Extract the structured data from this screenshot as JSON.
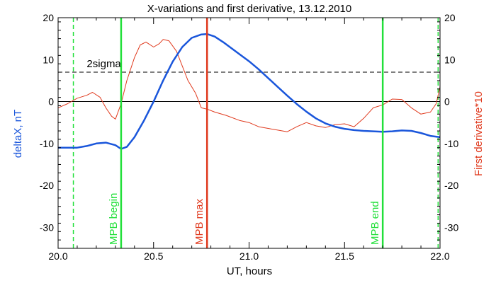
{
  "chart_data": {
    "type": "line",
    "title": "X-variations and first derivative, 13.12.2010",
    "xlabel": "UT, hours",
    "ylabel_left": "deltaX, nT",
    "ylabel_right": "First derivative*10",
    "xlim": [
      20.0,
      22.0
    ],
    "ylim": [
      -35,
      20
    ],
    "xticks": [
      {
        "value": 20.0,
        "label": "20.0"
      },
      {
        "value": 20.5,
        "label": "20.5"
      },
      {
        "value": 21.0,
        "label": "21.0"
      },
      {
        "value": 21.5,
        "label": "21.5"
      },
      {
        "value": 22.0,
        "label": "22.0"
      }
    ],
    "yticks": [
      {
        "value": 20,
        "label": "20"
      },
      {
        "value": 10,
        "label": "10"
      },
      {
        "value": 0,
        "label": "0"
      },
      {
        "value": -10,
        "label": "-10"
      },
      {
        "value": -20,
        "label": "-20"
      },
      {
        "value": -30,
        "label": "-30"
      }
    ],
    "colors": {
      "deltaX": "#1a56db",
      "derivative": "#e03a1e",
      "mpb_boundary": "#22e03a",
      "mpb_max": "#e03a1e",
      "axis": "#000000"
    },
    "series": [
      {
        "key": "deltaX",
        "x": [
          20.0,
          20.05,
          20.1,
          20.15,
          20.2,
          20.25,
          20.3,
          20.33,
          20.36,
          20.4,
          20.45,
          20.5,
          20.55,
          20.6,
          20.65,
          20.7,
          20.75,
          20.78,
          20.82,
          20.87,
          20.95,
          21.0,
          21.05,
          21.1,
          21.15,
          21.2,
          21.25,
          21.3,
          21.35,
          21.4,
          21.45,
          21.5,
          21.55,
          21.6,
          21.65,
          21.7,
          21.75,
          21.8,
          21.85,
          21.9,
          21.95,
          22.0
        ],
        "y": [
          -11,
          -11,
          -11,
          -10.6,
          -10,
          -9.8,
          -10.4,
          -11.3,
          -10.8,
          -8.5,
          -4.5,
          0,
          5,
          9.5,
          13,
          15.2,
          16,
          16.1,
          15.5,
          14,
          11.3,
          9.6,
          7.7,
          5.6,
          3.5,
          1.4,
          -0.6,
          -2.4,
          -4,
          -5.2,
          -6,
          -6.5,
          -6.8,
          -7,
          -7.1,
          -7.2,
          -7.1,
          -6.9,
          -7,
          -7.5,
          -8.2,
          -8.5
        ]
      },
      {
        "key": "derivative",
        "x": [
          20.0,
          20.05,
          20.1,
          20.15,
          20.18,
          20.22,
          20.25,
          20.28,
          20.3,
          20.33,
          20.36,
          20.4,
          20.43,
          20.46,
          20.5,
          20.53,
          20.55,
          20.58,
          20.62,
          20.65,
          20.68,
          20.72,
          20.75,
          20.78,
          20.82,
          20.88,
          20.95,
          21.0,
          21.05,
          21.1,
          21.15,
          21.2,
          21.25,
          21.3,
          21.35,
          21.4,
          21.45,
          21.5,
          21.55,
          21.6,
          21.65,
          21.7,
          21.75,
          21.8,
          21.85,
          21.9,
          21.95,
          21.98,
          22.0
        ],
        "y": [
          -1.5,
          -0.5,
          0.8,
          1.5,
          2.2,
          1,
          -1.5,
          -3.5,
          -4.2,
          -0.5,
          5,
          10.5,
          13.5,
          14.2,
          13,
          13.8,
          14.8,
          14.5,
          12,
          8.5,
          5,
          2,
          -1.5,
          -1.8,
          -2.5,
          -3.3,
          -4.5,
          -5,
          -6,
          -6.4,
          -6.8,
          -7.2,
          -6,
          -5,
          -5.8,
          -6.2,
          -5.5,
          -5.3,
          -6,
          -4,
          -1.5,
          -0.8,
          0.6,
          0.5,
          -1.5,
          -3,
          -2.5,
          -0.5,
          3.5
        ]
      }
    ],
    "reference_lines": {
      "two_sigma": {
        "y": 7,
        "label": "2sigma"
      },
      "zero": {
        "y": 0
      }
    },
    "markers": [
      {
        "key": "mpb_begin",
        "x": 20.33,
        "label": "MPB begin"
      },
      {
        "key": "mpb_max",
        "x": 20.78,
        "label": "MPB max"
      },
      {
        "key": "mpb_end",
        "x": 21.7,
        "label": "MPB end"
      }
    ],
    "dashed_markers": [
      {
        "x": 20.08
      },
      {
        "x": 21.99
      }
    ]
  }
}
